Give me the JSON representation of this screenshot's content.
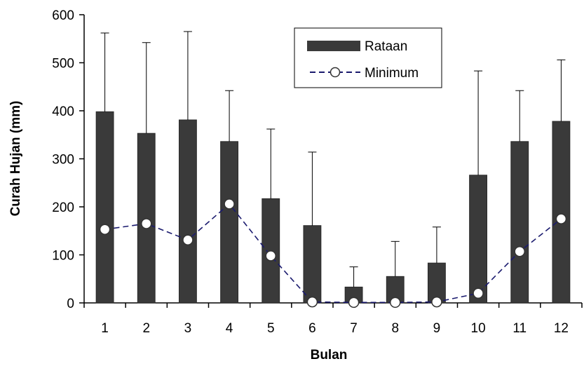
{
  "chart_data": {
    "type": "bar",
    "title": "",
    "xlabel": "Bulan",
    "ylabel": "Curah Hujan (mm)",
    "ylim": [
      0,
      600
    ],
    "yticks": [
      0,
      100,
      200,
      300,
      400,
      500,
      600
    ],
    "categories": [
      "1",
      "2",
      "3",
      "4",
      "5",
      "6",
      "7",
      "8",
      "9",
      "10",
      "11",
      "12"
    ],
    "series": [
      {
        "name": "Rataan",
        "type": "bar",
        "color": "#3a3a3a",
        "values": [
          398,
          353,
          381,
          336,
          217,
          161,
          33,
          55,
          83,
          266,
          336,
          378
        ],
        "error_upper": [
          562,
          542,
          565,
          442,
          362,
          314,
          75,
          128,
          158,
          483,
          442,
          506
        ]
      },
      {
        "name": "Minimum",
        "type": "line",
        "color": "#1a1a6e",
        "marker": "circle",
        "values": [
          153,
          165,
          131,
          206,
          98,
          2,
          1,
          1,
          2,
          20,
          107,
          175
        ]
      }
    ],
    "legend": {
      "placement": "top-right"
    },
    "grid": false
  }
}
